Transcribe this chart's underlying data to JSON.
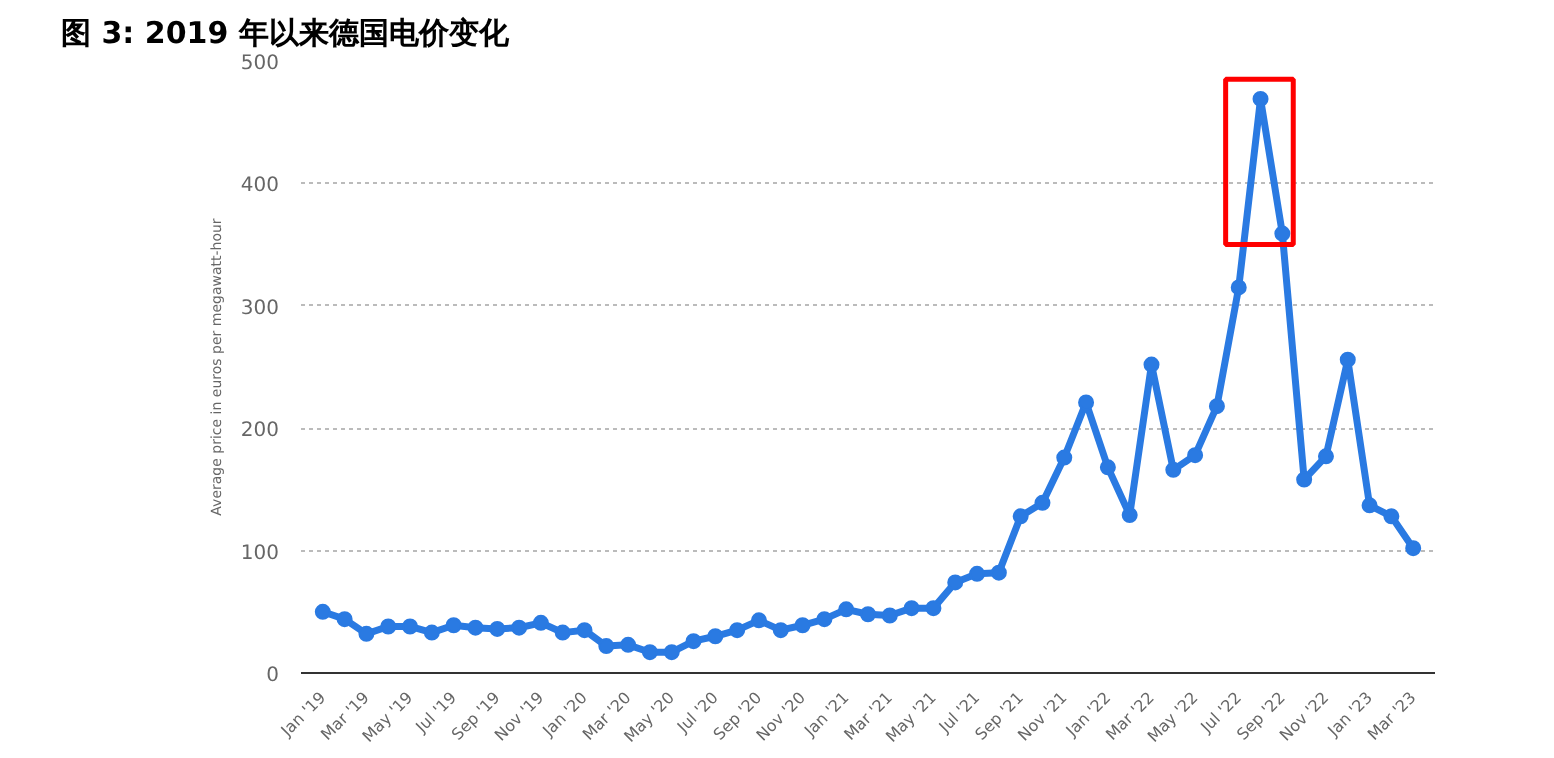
{
  "chart_data": {
    "type": "line",
    "title": "图 3:   2019 年以来德国电价变化",
    "ylabel": "Average price in euros per megawatt-hour",
    "categories": [
      "Jan '19",
      null,
      "Mar '19",
      null,
      "May '19",
      null,
      "Jul '19",
      null,
      "Sep '19",
      null,
      "Nov '19",
      null,
      "Jan '20",
      null,
      "Mar '20",
      null,
      "May '20",
      null,
      "Jul '20",
      null,
      "Sep '20",
      null,
      "Nov '20",
      null,
      "Jan '21",
      null,
      "Mar '21",
      null,
      "May '21",
      null,
      "Jul '21",
      null,
      "Sep '21",
      null,
      "Nov '21",
      null,
      "Jan '22",
      null,
      "Mar '22",
      null,
      "May '22",
      null,
      "Jul '22",
      null,
      "Sep '22",
      null,
      "Nov '22",
      null,
      "Jan '23",
      null,
      "Mar '23"
    ],
    "series": [
      {
        "color": "#2a7ae2",
        "values": [
          50,
          44,
          32,
          38,
          38,
          33,
          39,
          37,
          36,
          37,
          41,
          33,
          35,
          22,
          23,
          17,
          17,
          26,
          30,
          35,
          43,
          35,
          39,
          44,
          52,
          48,
          47,
          53,
          53,
          74,
          81,
          82,
          128,
          139,
          176,
          221,
          168,
          129,
          252,
          166,
          178,
          218,
          315,
          469,
          359,
          158,
          177,
          256,
          137,
          128,
          102
        ]
      }
    ],
    "ylim": [
      0,
      500
    ],
    "yticks": [
      0,
      100,
      200,
      300,
      400,
      500
    ],
    "grid": "y",
    "marker": "circle",
    "line_style": "solid"
  }
}
